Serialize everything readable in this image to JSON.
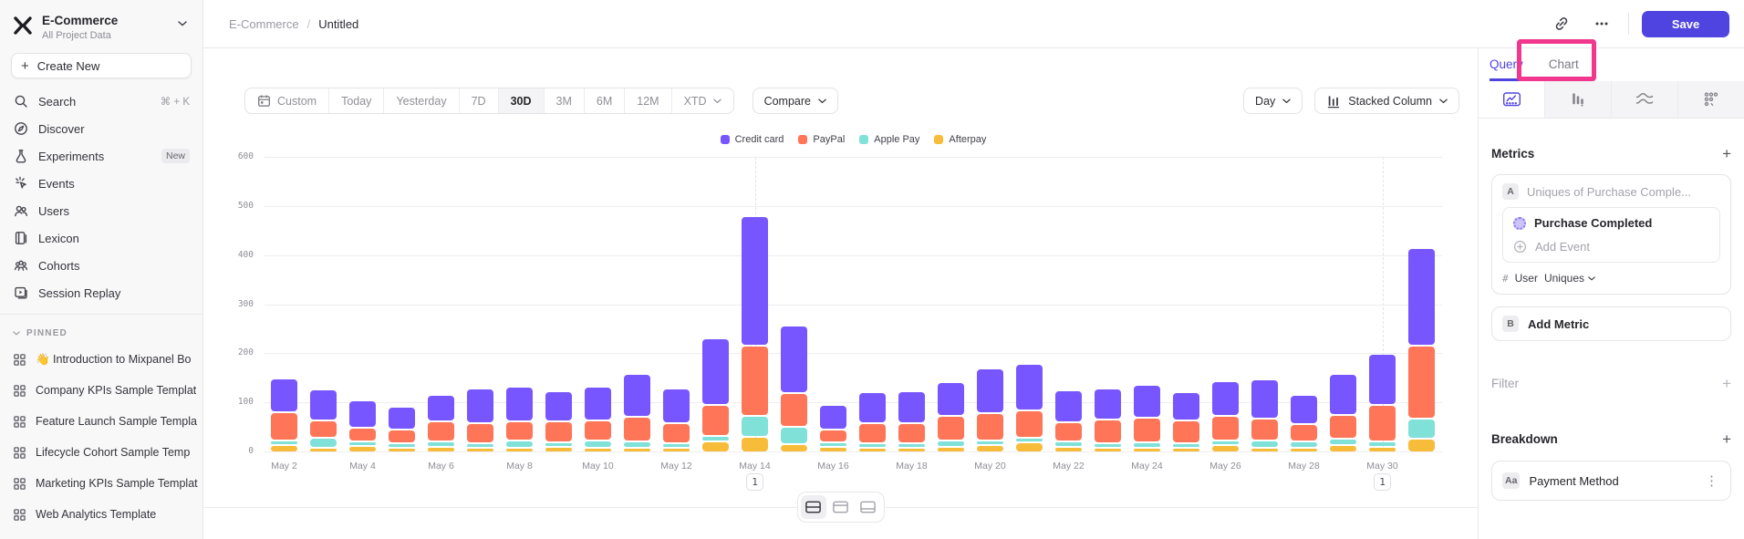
{
  "colors": {
    "accent": "#4F44E0",
    "annotation_highlight": "#F1388E"
  },
  "sidebar": {
    "project": {
      "name": "E-Commerce",
      "subtitle": "All Project Data"
    },
    "create_new": "Create New",
    "nav": [
      {
        "label": "Search",
        "shortcut": "⌘ + K"
      },
      {
        "label": "Discover"
      },
      {
        "label": "Experiments",
        "badge": "New"
      },
      {
        "label": "Events"
      },
      {
        "label": "Users"
      },
      {
        "label": "Lexicon"
      },
      {
        "label": "Cohorts"
      },
      {
        "label": "Session Replay"
      }
    ],
    "pinned_header": "PINNED",
    "pinned": [
      "👋 Introduction to Mixpanel Bo",
      "Company KPIs Sample Templat",
      "Feature Launch Sample Templa",
      "Lifecycle Cohort Sample Temp",
      "Marketing KPIs Sample Templat",
      "Web Analytics Template"
    ]
  },
  "header": {
    "breadcrumb": [
      "E-Commerce",
      "Untitled"
    ],
    "breadcrumb_separator": "/",
    "save_label": "Save",
    "action_icons": [
      "link-icon",
      "ellipsis-icon"
    ]
  },
  "toolbar": {
    "date_ranges": [
      "Custom",
      "Today",
      "Yesterday",
      "7D",
      "30D",
      "3M",
      "6M",
      "12M",
      "XTD"
    ],
    "selected_range": "30D",
    "compare_label": "Compare",
    "granularity_label": "Day",
    "chart_type_label": "Stacked Column"
  },
  "chart_data": {
    "type": "bar",
    "stacked": true,
    "title": "",
    "xlabel": "",
    "ylabel": "",
    "ylim": [
      0,
      600
    ],
    "yticks": [
      0,
      100,
      200,
      300,
      400,
      500,
      600
    ],
    "grid": "horizontal",
    "legend_position": "top",
    "legend_order": [
      "Credit card",
      "PayPal",
      "Apple Pay",
      "Afterpay"
    ],
    "xtick_every": 2,
    "categories": [
      "May 2",
      "May 3",
      "May 4",
      "May 5",
      "May 6",
      "May 7",
      "May 8",
      "May 9",
      "May 10",
      "May 11",
      "May 12",
      "May 13",
      "May 14",
      "May 15",
      "May 16",
      "May 17",
      "May 18",
      "May 19",
      "May 20",
      "May 21",
      "May 22",
      "May 23",
      "May 24",
      "May 25",
      "May 26",
      "May 27",
      "May 28",
      "May 29",
      "May 30",
      "May 31"
    ],
    "series": [
      {
        "name": "Afterpay",
        "color": "#F8BC3B",
        "values": [
          15,
          6,
          13,
          8,
          12,
          10,
          10,
          12,
          8,
          10,
          5,
          22,
          32,
          17,
          12,
          8,
          10,
          12,
          15,
          20,
          12,
          10,
          10,
          10,
          15,
          5,
          10,
          15,
          12,
          28
        ]
      },
      {
        "name": "Apple Pay",
        "color": "#80E1D9",
        "values": [
          8,
          20,
          7,
          10,
          10,
          8,
          15,
          8,
          15,
          12,
          10,
          12,
          43,
          35,
          8,
          10,
          8,
          12,
          10,
          10,
          10,
          8,
          10,
          8,
          10,
          15,
          12,
          12,
          10,
          40
        ]
      },
      {
        "name": "PayPal",
        "color": "#FF7557",
        "values": [
          57,
          36,
          28,
          28,
          42,
          40,
          38,
          42,
          40,
          50,
          40,
          62,
          142,
          69,
          25,
          40,
          40,
          50,
          55,
          55,
          40,
          48,
          50,
          45,
          50,
          45,
          35,
          50,
          75,
          150
        ]
      },
      {
        "name": "Credit card",
        "color": "#7856FF",
        "values": [
          70,
          63,
          55,
          46,
          54,
          70,
          70,
          62,
          70,
          88,
          71,
          136,
          265,
          137,
          51,
          63,
          65,
          69,
          91,
          96,
          64,
          63,
          67,
          58,
          70,
          80,
          61,
          83,
          103,
          199
        ]
      }
    ],
    "annotations": [
      {
        "category": "May 14",
        "label": "1"
      },
      {
        "category": "May 30",
        "label": "1"
      }
    ]
  },
  "footer": {
    "layout_toggle": {
      "options": [
        "split-chart-table",
        "chart-only",
        "table-only"
      ],
      "selected": 0
    }
  },
  "right_panel": {
    "tabs": [
      {
        "label": "Query"
      },
      {
        "label": "Chart"
      }
    ],
    "active_tab": "Query",
    "report_type_icons": [
      "insights-line-icon",
      "funnels-bars-icon",
      "flows-icon",
      "retention-dots-icon"
    ],
    "metrics": {
      "heading": "Metrics",
      "add": "+",
      "metric_a": {
        "badge": "A",
        "name": "Uniques of Purchase Comple...",
        "event": "Purchase Completed",
        "add_event": "Add Event",
        "measure_prefix": "#",
        "measure_entity": "User",
        "measure_type": "Uniques"
      },
      "metric_b": {
        "badge": "B",
        "label": "Add Metric"
      }
    },
    "filter": {
      "heading": "Filter",
      "add": "+"
    },
    "breakdown": {
      "heading": "Breakdown",
      "add": "+",
      "items": [
        {
          "badge": "Aa",
          "label": "Payment Method"
        }
      ]
    }
  },
  "annotation_overlay": {
    "highlighted_tab": "Chart"
  }
}
